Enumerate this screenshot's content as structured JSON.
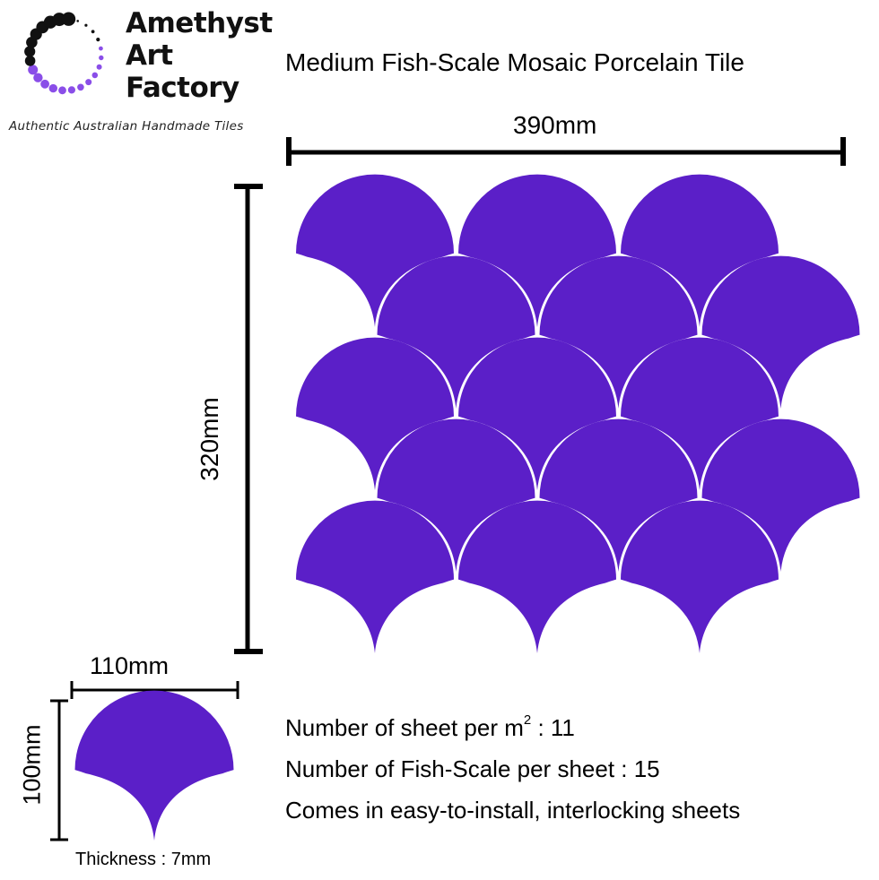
{
  "brand": {
    "name_lines": [
      "Amethyst",
      "Art",
      "Factory"
    ],
    "tagline": "Authentic Australian Handmade Tiles",
    "accent_color": "#8a4ee8",
    "dark_dot_color": "#111111"
  },
  "product": {
    "title": "Medium Fish-Scale Mosaic Porcelain Tile",
    "tile_color": "#5b1fc8"
  },
  "sheet": {
    "width_label": "390mm",
    "height_label": "320mm"
  },
  "tile": {
    "width_label": "110mm",
    "height_label": "100mm",
    "thickness_label": "Thickness : 7mm"
  },
  "info": {
    "sheets_per_m2_prefix": "Number of sheet per m",
    "sheets_per_m2_power": "2",
    "sheets_per_m2_value": " : 11",
    "scales_per_sheet": "Number of Fish-Scale per sheet : 15",
    "install_note": "Comes in easy-to-install, interlocking sheets"
  }
}
